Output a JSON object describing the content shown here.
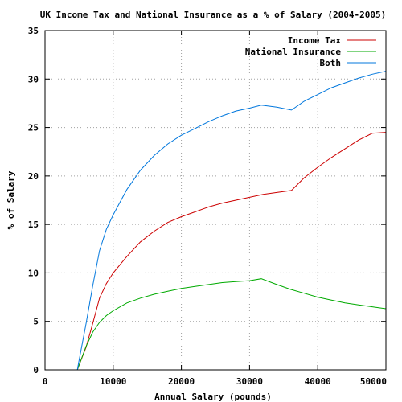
{
  "chart_data": {
    "type": "line",
    "title": "UK Income Tax and National Insurance as a % of Salary (2004-2005)",
    "xlabel": "Annual Salary (pounds)",
    "ylabel": "% of Salary",
    "xlim": [
      0,
      50000
    ],
    "ylim": [
      0,
      35
    ],
    "x_ticks": [
      0,
      10000,
      20000,
      30000,
      40000,
      50000
    ],
    "y_ticks": [
      0,
      5,
      10,
      15,
      20,
      25,
      30,
      35
    ],
    "x_tick_labels": [
      "0",
      "10000",
      "20000",
      "30000",
      "40000",
      "50000"
    ],
    "y_tick_labels": [
      "0",
      "5",
      "10",
      "15",
      "20",
      "25",
      "30",
      "35"
    ],
    "grid": true,
    "legend_position": "top-right",
    "series": [
      {
        "name": "Income Tax",
        "color": "#cc0000",
        "x": [
          4745,
          5000,
          6000,
          7000,
          8000,
          9000,
          10000,
          12000,
          14000,
          16000,
          18000,
          20000,
          22000,
          24000,
          26000,
          28000,
          30000,
          32000,
          34000,
          36145,
          38000,
          40000,
          42000,
          44000,
          46000,
          48000,
          50000
        ],
        "y": [
          0,
          0.5,
          2.3,
          4.8,
          7.4,
          8.9,
          10.0,
          11.7,
          13.2,
          14.3,
          15.2,
          15.8,
          16.3,
          16.8,
          17.2,
          17.5,
          17.8,
          18.1,
          18.3,
          18.5,
          19.8,
          20.9,
          21.9,
          22.8,
          23.7,
          24.4,
          24.5
        ]
      },
      {
        "name": "National Insurance",
        "color": "#00aa00",
        "x": [
          4745,
          5000,
          6000,
          7000,
          8000,
          9000,
          10000,
          12000,
          14000,
          16000,
          18000,
          20000,
          22000,
          24000,
          26000,
          28000,
          30000,
          31720,
          34000,
          36000,
          38000,
          40000,
          42000,
          44000,
          46000,
          48000,
          50000
        ],
        "y": [
          0,
          0.5,
          2.4,
          3.9,
          4.9,
          5.6,
          6.1,
          6.9,
          7.4,
          7.8,
          8.1,
          8.4,
          8.6,
          8.8,
          9.0,
          9.1,
          9.2,
          9.4,
          8.8,
          8.3,
          7.9,
          7.5,
          7.2,
          6.9,
          6.7,
          6.5,
          6.3
        ]
      },
      {
        "name": "Both",
        "color": "#0077dd",
        "x": [
          4745,
          5000,
          6000,
          7000,
          8000,
          9000,
          10000,
          12000,
          14000,
          16000,
          18000,
          20000,
          22000,
          24000,
          26000,
          28000,
          30000,
          31720,
          34000,
          36145,
          38000,
          40000,
          42000,
          44000,
          46000,
          48000,
          50000
        ],
        "y": [
          0,
          1.0,
          4.7,
          8.7,
          12.3,
          14.5,
          16.0,
          18.6,
          20.6,
          22.1,
          23.3,
          24.2,
          24.9,
          25.6,
          26.2,
          26.7,
          27.0,
          27.3,
          27.1,
          26.8,
          27.7,
          28.4,
          29.1,
          29.6,
          30.1,
          30.5,
          30.8
        ]
      }
    ]
  }
}
